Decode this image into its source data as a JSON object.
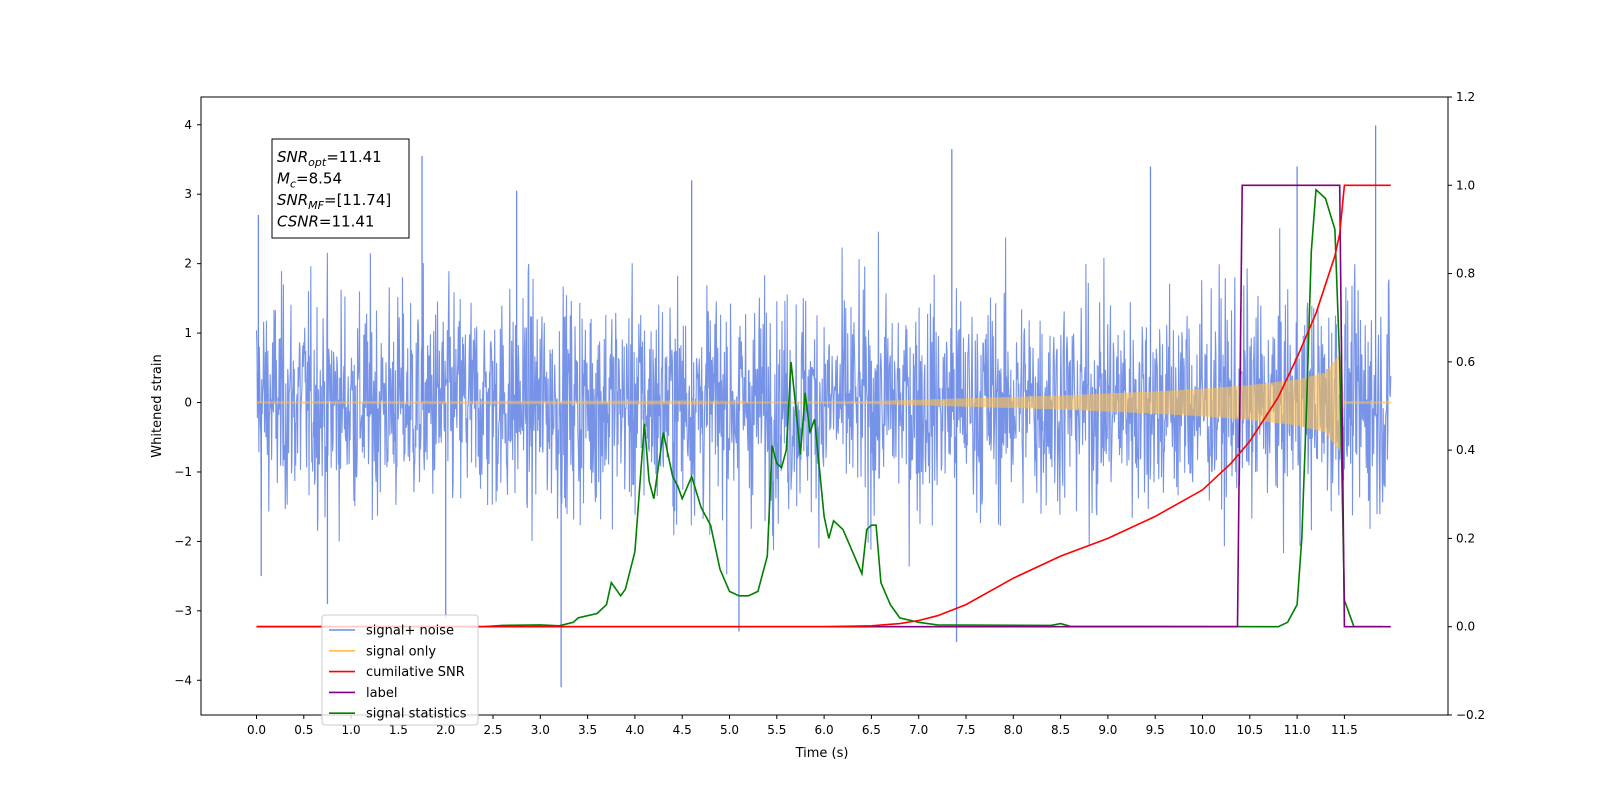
{
  "chart_data": {
    "type": "line",
    "xlabel": "Time (s)",
    "ylabel": "Whitened strain",
    "ylabel_right": "",
    "xlim": [
      -0.6,
      12.5
    ],
    "ylim": [
      -4.5,
      4.4
    ],
    "ylim_right": [
      -0.2,
      1.2
    ],
    "x_ticks": [
      0.0,
      0.5,
      1.0,
      1.5,
      2.0,
      2.5,
      3.0,
      3.5,
      4.0,
      4.5,
      5.0,
      5.5,
      6.0,
      6.5,
      7.0,
      7.5,
      8.0,
      8.5,
      9.0,
      9.5,
      10.0,
      10.5,
      11.0,
      11.5
    ],
    "x_tick_labels": [
      "0.0",
      "0.5",
      "1.0",
      "1.5",
      "2.0",
      "2.5",
      "3.0",
      "3.5",
      "4.0",
      "4.5",
      "5.0",
      "5.5",
      "6.0",
      "6.5",
      "7.0",
      "7.5",
      "8.0",
      "8.5",
      "9.0",
      "9.5",
      "10.0",
      "10.5",
      "11.0",
      "11.5"
    ],
    "y_ticks": [
      -4,
      -3,
      -2,
      -1,
      0,
      1,
      2,
      3,
      4
    ],
    "y_tick_labels": [
      "−4",
      "−3",
      "−2",
      "−1",
      "0",
      "1",
      "2",
      "3",
      "4"
    ],
    "y_ticks_right": [
      -0.2,
      0.0,
      0.2,
      0.4,
      0.6,
      0.8,
      1.0,
      1.2
    ],
    "y_tick_labels_right": [
      "−0.2",
      "0.0",
      "0.2",
      "0.4",
      "0.6",
      "0.8",
      "1.0",
      "1.2"
    ],
    "grid": false,
    "legend_position": "lower-left",
    "legend": [
      {
        "label": "signal+ noise",
        "color": "#6b8ae6"
      },
      {
        "label": "signal only",
        "color": "#ffc04d"
      },
      {
        "label": "cumilative SNR",
        "color": "#ff0000"
      },
      {
        "label": "label",
        "color": "#800080"
      },
      {
        "label": "signal statistics",
        "color": "#007f00"
      }
    ],
    "annotation": {
      "lines": [
        {
          "symbol": "SNR",
          "sub": "opt",
          "value": "=11.41"
        },
        {
          "symbol": "M",
          "sub": "c",
          "value": "=8.54"
        },
        {
          "symbol": "SNR",
          "sub": "MF",
          "value": "=[11.74]"
        },
        {
          "symbol": "CSNR",
          "sub": "",
          "value": "=11.41"
        }
      ]
    },
    "series": [
      {
        "name": "signal+ noise",
        "axis": "left",
        "color": "#6b8ae6",
        "style": "noise",
        "x_range": [
          0.0,
          11.99
        ],
        "typical_amplitude": 2.3,
        "spikes": [
          [
            0.02,
            2.7
          ],
          [
            0.05,
            -2.5
          ],
          [
            1.75,
            3.55
          ],
          [
            2.75,
            3.05
          ],
          [
            3.22,
            -4.1
          ],
          [
            4.6,
            3.2
          ],
          [
            5.1,
            -3.3
          ],
          [
            7.4,
            -3.45
          ],
          [
            7.35,
            3.65
          ],
          [
            9.45,
            3.4
          ],
          [
            11.0,
            3.4
          ],
          [
            11.83,
            3.99
          ],
          [
            0.75,
            -2.9
          ],
          [
            2.0,
            -3.1
          ]
        ]
      },
      {
        "name": "signal only",
        "axis": "left",
        "color": "#ffc04d",
        "style": "chirp-envelope",
        "envelope": {
          "x": [
            0.0,
            5.0,
            6.5,
            7.0,
            7.5,
            8.0,
            8.5,
            9.0,
            9.5,
            10.0,
            10.5,
            11.0,
            11.3,
            11.45,
            11.5,
            11.99
          ],
          "amp": [
            0.005,
            0.01,
            0.02,
            0.04,
            0.06,
            0.08,
            0.1,
            0.13,
            0.16,
            0.2,
            0.25,
            0.33,
            0.43,
            0.7,
            0.02,
            0.01
          ]
        }
      },
      {
        "name": "cumilative SNR",
        "axis": "right",
        "color": "#ff0000",
        "x": [
          0.0,
          6.0,
          6.5,
          6.8,
          7.0,
          7.2,
          7.5,
          8.0,
          8.5,
          9.0,
          9.5,
          10.0,
          10.3,
          10.5,
          10.8,
          11.0,
          11.2,
          11.4,
          11.45,
          11.5,
          11.99
        ],
        "values": [
          0.0,
          0.0,
          0.002,
          0.007,
          0.014,
          0.025,
          0.05,
          0.11,
          0.16,
          0.2,
          0.25,
          0.31,
          0.37,
          0.42,
          0.52,
          0.61,
          0.71,
          0.84,
          0.89,
          1.0,
          1.0
        ]
      },
      {
        "name": "label",
        "axis": "right",
        "color": "#800080",
        "x": [
          0.0,
          10.37,
          10.42,
          11.45,
          11.5,
          11.99
        ],
        "values": [
          0.0,
          0.0,
          1.0,
          1.0,
          0.0,
          0.0
        ]
      },
      {
        "name": "signal statistics",
        "axis": "right",
        "color": "#007f00",
        "x": [
          0.0,
          2.4,
          2.6,
          3.0,
          3.2,
          3.35,
          3.4,
          3.5,
          3.6,
          3.7,
          3.75,
          3.85,
          3.9,
          4.0,
          4.1,
          4.15,
          4.2,
          4.3,
          4.4,
          4.45,
          4.5,
          4.6,
          4.7,
          4.8,
          4.9,
          5.0,
          5.1,
          5.2,
          5.3,
          5.4,
          5.45,
          5.5,
          5.55,
          5.6,
          5.65,
          5.7,
          5.75,
          5.8,
          5.85,
          5.9,
          6.0,
          6.05,
          6.1,
          6.2,
          6.3,
          6.4,
          6.45,
          6.5,
          6.55,
          6.6,
          6.7,
          6.8,
          7.0,
          7.2,
          8.4,
          8.5,
          8.6,
          10.8,
          10.9,
          11.0,
          11.05,
          11.1,
          11.15,
          11.2,
          11.3,
          11.4,
          11.45,
          11.5,
          11.6,
          11.9
        ],
        "values": [
          0.0,
          0.0,
          0.003,
          0.004,
          0.002,
          0.01,
          0.02,
          0.025,
          0.03,
          0.05,
          0.1,
          0.07,
          0.085,
          0.17,
          0.46,
          0.33,
          0.29,
          0.44,
          0.34,
          0.32,
          0.29,
          0.34,
          0.27,
          0.23,
          0.13,
          0.08,
          0.07,
          0.07,
          0.08,
          0.16,
          0.41,
          0.37,
          0.36,
          0.4,
          0.6,
          0.5,
          0.39,
          0.53,
          0.44,
          0.47,
          0.25,
          0.2,
          0.24,
          0.22,
          0.17,
          0.12,
          0.22,
          0.23,
          0.23,
          0.1,
          0.05,
          0.02,
          0.01,
          0.004,
          0.003,
          0.007,
          0.001,
          0.0,
          0.01,
          0.05,
          0.2,
          0.5,
          0.85,
          0.99,
          0.97,
          0.9,
          0.6,
          0.06,
          0.0,
          0.0
        ]
      }
    ]
  }
}
